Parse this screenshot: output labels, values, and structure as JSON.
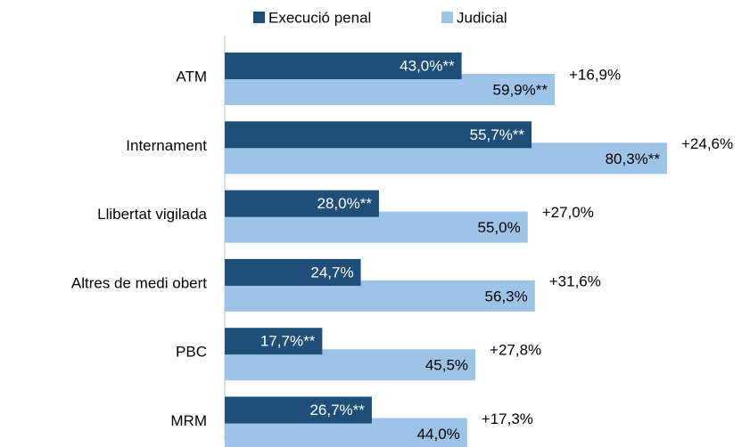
{
  "chart_data": {
    "type": "bar",
    "orientation": "horizontal",
    "categories": [
      "ATM",
      "Internament",
      "Llibertat vigilada",
      "Altres de medi obert",
      "PBC",
      "MRM"
    ],
    "series": [
      {
        "name": "Execució penal",
        "color": "#1f4e79",
        "values": [
          43.0,
          55.7,
          28.0,
          24.7,
          17.7,
          26.7
        ],
        "value_labels": [
          "43,0%**",
          "55,7%**",
          "28,0%**",
          "24,7%",
          "17,7%**",
          "26,7%**"
        ]
      },
      {
        "name": "Judicial",
        "color": "#9dc3e6",
        "values": [
          59.9,
          80.3,
          55.0,
          56.3,
          45.5,
          44.0
        ],
        "value_labels": [
          "59,9%**",
          "80,3%**",
          "55,0%",
          "56,3%",
          "45,5%",
          "44,0%"
        ]
      }
    ],
    "annotations": [
      "+16,9%",
      "+24,6%",
      "+27,0%",
      "+31,6%",
      "+27,8%",
      "+17,3%"
    ],
    "legend": "top"
  }
}
